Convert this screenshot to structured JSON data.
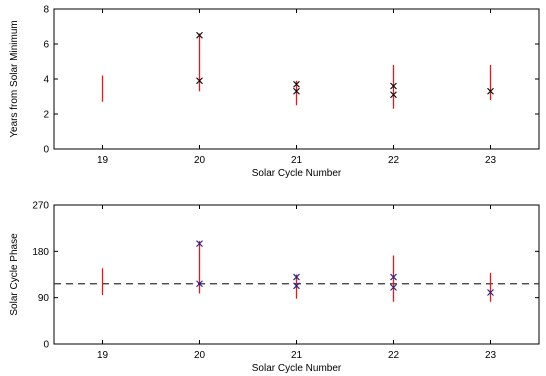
{
  "chart_data": [
    {
      "type": "scatter",
      "categories": [
        "19",
        "20",
        "21",
        "22",
        "23"
      ],
      "xlabel": "Solar Cycle Number",
      "ylabel": "Years from Solar Minimum",
      "xlim": [
        18.5,
        23.5
      ],
      "ylim": [
        0,
        8
      ],
      "yticks": [
        "0",
        "2",
        "4",
        "6",
        "8"
      ],
      "reference_line": null,
      "ranges": [
        {
          "x": 19,
          "low": 2.7,
          "high": 4.2
        },
        {
          "x": 20,
          "low": 3.3,
          "high": 6.6
        },
        {
          "x": 21,
          "low": 2.5,
          "high": 3.9
        },
        {
          "x": 22,
          "low": 2.3,
          "high": 4.8
        },
        {
          "x": 23,
          "low": 2.8,
          "high": 4.8
        }
      ],
      "points": [
        {
          "x": 20,
          "y": 6.5
        },
        {
          "x": 20,
          "y": 3.9
        },
        {
          "x": 21,
          "y": 3.7
        },
        {
          "x": 21,
          "y": 3.3
        },
        {
          "x": 22,
          "y": 3.6
        },
        {
          "x": 22,
          "y": 3.1
        },
        {
          "x": 23,
          "y": 3.3
        }
      ],
      "colors": {
        "range": "#e8161b",
        "marker": "#000000"
      }
    },
    {
      "type": "scatter",
      "categories": [
        "19",
        "20",
        "21",
        "22",
        "23"
      ],
      "xlabel": "Solar Cycle Number",
      "ylabel": "Solar Cycle Phase",
      "xlim": [
        18.5,
        23.5
      ],
      "ylim": [
        0,
        270
      ],
      "yticks": [
        "0",
        "90",
        "180",
        "270"
      ],
      "reference_line": {
        "y": 117,
        "style": "dashed",
        "color": "#333333"
      },
      "ranges": [
        {
          "x": 19,
          "low": 95,
          "high": 147
        },
        {
          "x": 20,
          "low": 98,
          "high": 200
        },
        {
          "x": 21,
          "low": 88,
          "high": 135
        },
        {
          "x": 22,
          "low": 82,
          "high": 172
        },
        {
          "x": 23,
          "low": 82,
          "high": 138
        }
      ],
      "points": [
        {
          "x": 20,
          "y": 195
        },
        {
          "x": 20,
          "y": 117
        },
        {
          "x": 21,
          "y": 130
        },
        {
          "x": 21,
          "y": 113
        },
        {
          "x": 22,
          "y": 130
        },
        {
          "x": 22,
          "y": 110
        },
        {
          "x": 23,
          "y": 100
        }
      ],
      "colors": {
        "range": "#e8161b",
        "marker": "#1f1f8f"
      }
    }
  ]
}
